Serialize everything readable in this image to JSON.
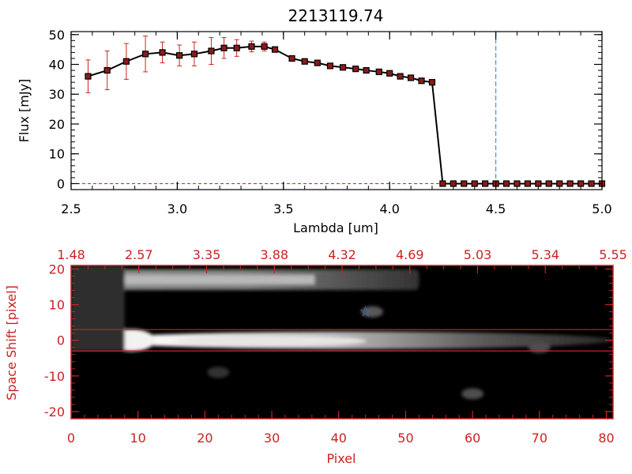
{
  "chart_data": [
    {
      "type": "line",
      "title": "2213119.74",
      "xlabel": "Lambda [um]",
      "ylabel": "Flux [mJy]",
      "xlim": [
        2.5,
        5.0
      ],
      "ylim": [
        -2,
        51
      ],
      "xticks": [
        "2.5",
        "3.0",
        "3.5",
        "4.0",
        "4.5",
        "5.0"
      ],
      "yticks": [
        "0",
        "10",
        "20",
        "30",
        "40",
        "50"
      ],
      "line_color": "#000000",
      "marker_color": "#8b1a1a",
      "errorbar_color": "#cc2222",
      "vline": {
        "x": 4.5,
        "color": "#3a9bd1"
      },
      "hline": {
        "y": 0,
        "color": "#cc2222"
      },
      "x": [
        2.58,
        2.67,
        2.76,
        2.85,
        2.93,
        3.01,
        3.08,
        3.16,
        3.22,
        3.28,
        3.35,
        3.41,
        3.46,
        3.54,
        3.6,
        3.66,
        3.72,
        3.78,
        3.84,
        3.89,
        3.95,
        4.0,
        4.05,
        4.1,
        4.15,
        4.2,
        4.25,
        4.3,
        4.35,
        4.4,
        4.45,
        4.5,
        4.55,
        4.6,
        4.65,
        4.7,
        4.75,
        4.8,
        4.85,
        4.9,
        4.95,
        5.0
      ],
      "y": [
        36,
        38,
        41,
        43.5,
        44,
        43,
        43.5,
        44.5,
        45.5,
        45.5,
        46,
        46,
        45,
        42,
        41,
        40.5,
        39.5,
        39,
        38.5,
        38,
        37.5,
        37,
        36,
        35.5,
        34.5,
        34,
        0,
        0,
        0,
        0,
        0,
        0,
        0,
        0,
        0,
        0,
        0,
        0,
        0,
        0,
        0,
        0
      ],
      "yerr": [
        5.5,
        6.5,
        6.0,
        6.0,
        3.5,
        3.5,
        4.0,
        4.5,
        3.5,
        2.8,
        1.8,
        1.5,
        0.8,
        0.8,
        0.6,
        0.5,
        0.5,
        0.5,
        0.5,
        0.5,
        0.5,
        0.5,
        0.5,
        0.5,
        0.5,
        0.5,
        0,
        0,
        0,
        0,
        0,
        0,
        0,
        0,
        0,
        0,
        0,
        0,
        0,
        0,
        0,
        0
      ]
    },
    {
      "type": "heatmap",
      "xlabel": "Pixel",
      "ylabel": "Space Shift [pixel]",
      "xlim": [
        0,
        81
      ],
      "ylim": [
        -22,
        21
      ],
      "xticks": [
        "0",
        "10",
        "20",
        "30",
        "40",
        "50",
        "60",
        "70",
        "80"
      ],
      "yticks": [
        "-20",
        "-10",
        "0",
        "10",
        "20"
      ],
      "top_ticks": [
        "1.48",
        "2.57",
        "3.35",
        "3.88",
        "4.32",
        "4.69",
        "5.03",
        "5.34",
        "5.55"
      ],
      "axis_color": "#cc2222",
      "band_lines": [
        3,
        -3
      ],
      "star": {
        "x": 44,
        "y": 8,
        "color": "#3a7bd5"
      },
      "cmap": "gray",
      "background": "#000000",
      "features": [
        {
          "name": "upper-trace",
          "x_start": 0,
          "x_end": 52,
          "y_center": 17,
          "brightness": 0.55
        },
        {
          "name": "main-trace",
          "x_start": 4,
          "x_end": 81,
          "y_center": 0,
          "brightness": 1.0
        },
        {
          "name": "blob-star",
          "x": 45,
          "y": 8,
          "brightness": 0.35
        },
        {
          "name": "blob-lower",
          "x": 60,
          "y": -15,
          "brightness": 0.3
        },
        {
          "name": "blob-right",
          "x": 70,
          "y": -2,
          "brightness": 0.3
        },
        {
          "name": "blob-small",
          "x": 22,
          "y": -9,
          "brightness": 0.2
        }
      ]
    }
  ]
}
